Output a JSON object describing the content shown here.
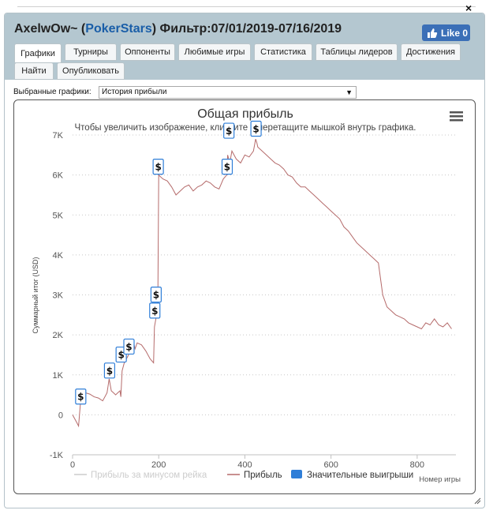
{
  "header": {
    "player": "AxelwOw~",
    "site": "PokerStars",
    "filter_label": "Фильтр:",
    "filter_range": "07/01/2019-07/16/2019",
    "like_label": "Like",
    "like_count": "0",
    "close_symbol": "×"
  },
  "tabs": [
    {
      "label": "Графики",
      "active": true
    },
    {
      "label": "Турниры"
    },
    {
      "label": "Оппоненты"
    },
    {
      "label": "Любимые игры"
    },
    {
      "label": "Статистика"
    },
    {
      "label": "Таблицы лидеров"
    },
    {
      "label": "Достижения"
    },
    {
      "label": "Найти"
    },
    {
      "label": "Опубликовать"
    }
  ],
  "selector": {
    "label": "Выбранные графики:",
    "value": "История прибыли"
  },
  "chart_data": {
    "type": "line",
    "title": "Общая прибыль",
    "subtitle": "Чтобы увеличить изображение, кликните и перетащите мышкой внутрь графика.",
    "ylabel": "Суммарный итог (USD)",
    "xlabel": "Номер игры",
    "xlim": [
      0,
      890
    ],
    "ylim": [
      -1000,
      7000
    ],
    "x_ticks": [
      "0",
      "200",
      "400",
      "600",
      "800"
    ],
    "y_ticks": [
      "-1K",
      "0",
      "1K",
      "2K",
      "3K",
      "4K",
      "5K",
      "6K",
      "7K"
    ],
    "grid": true,
    "legend_position": "bottom",
    "legend": [
      {
        "name": "Прибыль за минусом рейка",
        "color": "#cccccc"
      },
      {
        "name": "Прибыль",
        "color": "#b56b6b"
      },
      {
        "name": "Значительные выигрыши",
        "color": "#2f7ed8"
      }
    ],
    "series": [
      {
        "name": "Прибыль",
        "color": "#b56b6b",
        "x": [
          0,
          5,
          10,
          14,
          18,
          22,
          30,
          40,
          50,
          60,
          70,
          80,
          85,
          90,
          95,
          100,
          105,
          110,
          112,
          115,
          120,
          125,
          130,
          135,
          140,
          145,
          150,
          160,
          170,
          180,
          188,
          190,
          195,
          198,
          200,
          205,
          210,
          220,
          230,
          240,
          250,
          260,
          270,
          280,
          290,
          300,
          310,
          320,
          330,
          340,
          350,
          358,
          360,
          365,
          370,
          380,
          390,
          400,
          410,
          420,
          425,
          428,
          430,
          440,
          450,
          460,
          470,
          480,
          490,
          500,
          510,
          520,
          530,
          540,
          550,
          560,
          570,
          580,
          590,
          600,
          610,
          620,
          630,
          640,
          650,
          660,
          670,
          680,
          690,
          700,
          710,
          720,
          730,
          740,
          750,
          760,
          770,
          780,
          790,
          800,
          810,
          820,
          830,
          840,
          850,
          860,
          870,
          880
        ],
        "y": [
          0,
          -100,
          -200,
          -280,
          250,
          500,
          550,
          520,
          450,
          420,
          350,
          550,
          900,
          600,
          550,
          500,
          550,
          600,
          450,
          1100,
          1300,
          1400,
          1500,
          1700,
          1900,
          1650,
          1800,
          1750,
          1600,
          1400,
          1300,
          2200,
          2500,
          2800,
          6000,
          5950,
          5900,
          5850,
          5700,
          5500,
          5600,
          5700,
          5750,
          5600,
          5700,
          5750,
          5850,
          5800,
          5700,
          5650,
          5900,
          6000,
          6500,
          6300,
          6600,
          6400,
          6300,
          6500,
          6450,
          6600,
          6900,
          6800,
          6700,
          6600,
          6500,
          6400,
          6300,
          6250,
          6150,
          6000,
          5950,
          5800,
          5700,
          5700,
          5600,
          5500,
          5400,
          5300,
          5200,
          5100,
          5000,
          4900,
          4700,
          4600,
          4450,
          4300,
          4200,
          4100,
          4000,
          3900,
          3800,
          3000,
          2700,
          2600,
          2500,
          2450,
          2400,
          2300,
          2250,
          2200,
          2150,
          2300,
          2250,
          2400,
          2250,
          2200,
          2300,
          2150
        ]
      }
    ],
    "big_wins": [
      {
        "x": 18,
        "y": 250
      },
      {
        "x": 85,
        "y": 900
      },
      {
        "x": 112,
        "y": 1300
      },
      {
        "x": 130,
        "y": 1500
      },
      {
        "x": 190,
        "y": 2400
      },
      {
        "x": 193,
        "y": 2800
      },
      {
        "x": 198,
        "y": 6000
      },
      {
        "x": 358,
        "y": 6000
      },
      {
        "x": 362,
        "y": 6900
      },
      {
        "x": 425,
        "y": 6950
      }
    ],
    "big_win_symbol": "$"
  }
}
